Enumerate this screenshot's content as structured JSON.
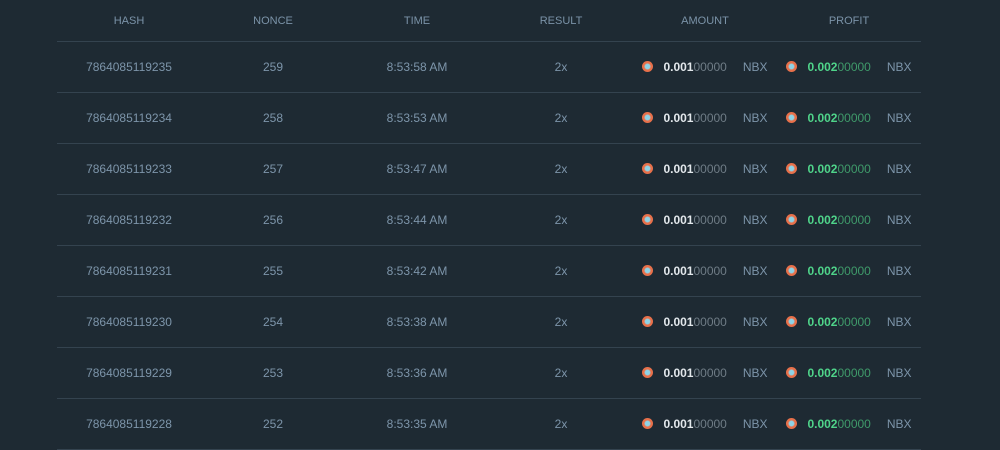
{
  "headers": [
    "HASH",
    "NONCE",
    "TIME",
    "RESULT",
    "AMOUNT",
    "PROFIT"
  ],
  "icon": "nbx-coin-icon",
  "rows": [
    {
      "hash": "7864085119235",
      "nonce": "259",
      "time": "8:53:58 AM",
      "result": "2x",
      "amount_main": "0.001",
      "amount_tail": "00000",
      "amount_unit": "NBX",
      "profit_main": "0.002",
      "profit_tail": "00000",
      "profit_unit": "NBX"
    },
    {
      "hash": "7864085119234",
      "nonce": "258",
      "time": "8:53:53 AM",
      "result": "2x",
      "amount_main": "0.001",
      "amount_tail": "00000",
      "amount_unit": "NBX",
      "profit_main": "0.002",
      "profit_tail": "00000",
      "profit_unit": "NBX"
    },
    {
      "hash": "7864085119233",
      "nonce": "257",
      "time": "8:53:47 AM",
      "result": "2x",
      "amount_main": "0.001",
      "amount_tail": "00000",
      "amount_unit": "NBX",
      "profit_main": "0.002",
      "profit_tail": "00000",
      "profit_unit": "NBX"
    },
    {
      "hash": "7864085119232",
      "nonce": "256",
      "time": "8:53:44 AM",
      "result": "2x",
      "amount_main": "0.001",
      "amount_tail": "00000",
      "amount_unit": "NBX",
      "profit_main": "0.002",
      "profit_tail": "00000",
      "profit_unit": "NBX"
    },
    {
      "hash": "7864085119231",
      "nonce": "255",
      "time": "8:53:42 AM",
      "result": "2x",
      "amount_main": "0.001",
      "amount_tail": "00000",
      "amount_unit": "NBX",
      "profit_main": "0.002",
      "profit_tail": "00000",
      "profit_unit": "NBX"
    },
    {
      "hash": "7864085119230",
      "nonce": "254",
      "time": "8:53:38 AM",
      "result": "2x",
      "amount_main": "0.001",
      "amount_tail": "00000",
      "amount_unit": "NBX",
      "profit_main": "0.002",
      "profit_tail": "00000",
      "profit_unit": "NBX"
    },
    {
      "hash": "7864085119229",
      "nonce": "253",
      "time": "8:53:36 AM",
      "result": "2x",
      "amount_main": "0.001",
      "amount_tail": "00000",
      "amount_unit": "NBX",
      "profit_main": "0.002",
      "profit_tail": "00000",
      "profit_unit": "NBX"
    },
    {
      "hash": "7864085119228",
      "nonce": "252",
      "time": "8:53:35 AM",
      "result": "2x",
      "amount_main": "0.001",
      "amount_tail": "00000",
      "amount_unit": "NBX",
      "profit_main": "0.002",
      "profit_tail": "00000",
      "profit_unit": "NBX"
    }
  ]
}
